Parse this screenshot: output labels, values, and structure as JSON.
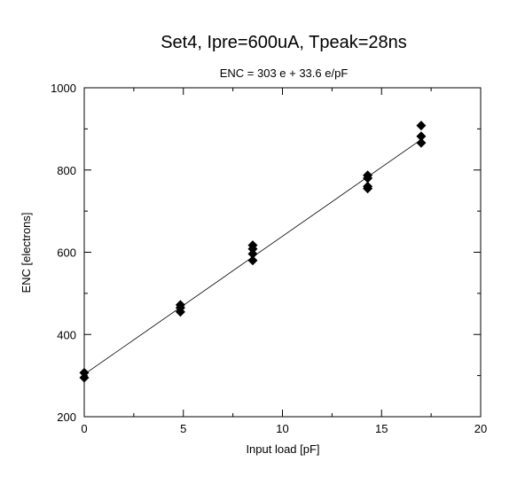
{
  "chart_data": {
    "type": "scatter",
    "title": "Set4, Ipre=600uA, Tpeak=28ns",
    "subtitle": "ENC = 303 e  +  33.6 e/pF",
    "xlabel": "Input load [pF]",
    "ylabel": "ENC [electrons]",
    "xlim": [
      0,
      20
    ],
    "ylim": [
      200,
      1000
    ],
    "x_ticks": [
      0,
      5,
      10,
      15,
      20
    ],
    "y_ticks": [
      200,
      400,
      600,
      800,
      1000
    ],
    "x_tick_labels": [
      "0",
      "5",
      "10",
      "15",
      "20"
    ],
    "y_tick_labels": [
      "200",
      "400",
      "600",
      "800",
      "1000"
    ],
    "grid": false,
    "marker": "diamond",
    "series": [
      {
        "points": [
          {
            "x": 0,
            "y": 307
          },
          {
            "x": 0,
            "y": 295
          },
          {
            "x": 4.85,
            "y": 472
          },
          {
            "x": 4.85,
            "y": 465
          },
          {
            "x": 4.85,
            "y": 455
          },
          {
            "x": 8.5,
            "y": 617
          },
          {
            "x": 8.5,
            "y": 608
          },
          {
            "x": 8.5,
            "y": 596
          },
          {
            "x": 8.5,
            "y": 580
          },
          {
            "x": 14.3,
            "y": 787
          },
          {
            "x": 14.3,
            "y": 780
          },
          {
            "x": 14.3,
            "y": 760
          },
          {
            "x": 14.3,
            "y": 755
          },
          {
            "x": 17,
            "y": 908
          },
          {
            "x": 17,
            "y": 882
          },
          {
            "x": 17,
            "y": 866
          }
        ]
      }
    ],
    "fit_line": {
      "x": [
        0,
        17
      ],
      "y": [
        303,
        874
      ]
    }
  }
}
